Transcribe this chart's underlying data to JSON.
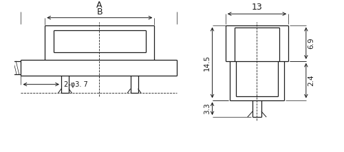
{
  "bg_color": "#ffffff",
  "line_color": "#1a1a1a",
  "text_color": "#1a1a1a",
  "fig_width": 5.0,
  "fig_height": 2.21,
  "dpi": 100,
  "left_view": {
    "label_A": "A",
    "label_B": "B",
    "label_hole": "2-φ3. 7"
  },
  "right_view": {
    "label_13": "13",
    "label_145": "14.5",
    "label_33": "3.3",
    "label_69": "6.9",
    "label_24": "2.4"
  }
}
